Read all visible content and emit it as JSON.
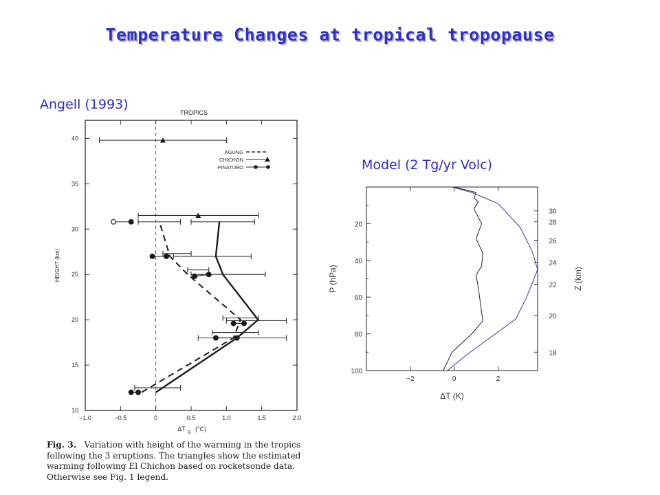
{
  "title": "Temperature Changes at tropical tropopause",
  "left_label": "Angell (1993)",
  "right_label": "Model (2 Tg/yr Volc)",
  "caption": {
    "figure": "Fig. 3.",
    "lines": [
      "Variation with height of the warming in the tropics",
      "following the 3 eruptions.  The triangles show the estimated",
      "warming following El Chichon based on rocketsonde data.",
      "Otherwise see Fig. 1 legend."
    ]
  },
  "chart_data": [
    {
      "type": "line",
      "title": "TROPICS",
      "xlabel": "ΔT",
      "xlabel_sub": "g",
      "xlabel_unit": "(°C)",
      "ylabel": "HEIGHT (km)",
      "xlim": [
        -1.0,
        2.0
      ],
      "ylim": [
        10,
        42
      ],
      "x_ticks": [
        -1.0,
        -0.5,
        0,
        0.5,
        1.0,
        1.5,
        2.0
      ],
      "x_tick_labels": [
        "−1.0",
        "−0.5",
        "0",
        "0.5",
        "1.0",
        "1.5",
        "2.0"
      ],
      "y_ticks": [
        10,
        15,
        20,
        25,
        30,
        35,
        40
      ],
      "legend_position": "top-right",
      "legend": [
        "AGUNG",
        "CHICHON",
        "PINATUBO"
      ],
      "series": [
        {
          "name": "AGUNG",
          "style": "dashed",
          "points": [
            [
              -0.2,
              12
            ],
            [
              1.1,
              18
            ],
            [
              1.2,
              20
            ],
            [
              0.45,
              25
            ],
            [
              0.2,
              27
            ],
            [
              0.05,
              30.8
            ]
          ]
        },
        {
          "name": "PINATUBO",
          "style": "solid",
          "points": [
            [
              0.0,
              12
            ],
            [
              1.15,
              18
            ],
            [
              1.45,
              20
            ],
            [
              0.95,
              25
            ],
            [
              0.85,
              27
            ],
            [
              0.9,
              30.8
            ]
          ]
        }
      ],
      "errorbars": [
        {
          "y": 31.5,
          "xmin": -0.25,
          "xmax": 1.45,
          "marker": "triangle",
          "x": 0.6
        },
        {
          "y": 30.8,
          "xmin": -0.25,
          "xmax": 0.35
        },
        {
          "y": 30.8,
          "xmin": 0.5,
          "xmax": 1.4
        },
        {
          "y": 27.3,
          "xmin": 0.1,
          "xmax": 0.5
        },
        {
          "y": 27.0,
          "xmin": 0.25,
          "xmax": 1.35
        },
        {
          "y": 25.5,
          "xmin": 0.45,
          "xmax": 0.75
        },
        {
          "y": 25.0,
          "xmin": 0.5,
          "xmax": 1.55
        },
        {
          "y": 20.2,
          "xmin": 0.95,
          "xmax": 1.45
        },
        {
          "y": 19.9,
          "xmin": 1.0,
          "xmax": 1.85
        },
        {
          "y": 18.6,
          "xmin": 0.8,
          "xmax": 1.45
        },
        {
          "y": 18.0,
          "xmin": 0.6,
          "xmax": 1.85
        },
        {
          "y": 12.5,
          "xmin": -0.3,
          "xmax": 0.35
        },
        {
          "y": 39.8,
          "xmin": -0.8,
          "xmax": 1.0,
          "marker": "triangle",
          "x": 0.1
        }
      ],
      "pinatubo_dots": [
        {
          "x": -0.6,
          "y": 30.8,
          "open": true
        },
        {
          "x": -0.35,
          "y": 30.8
        },
        {
          "x": -0.05,
          "y": 27.0
        },
        {
          "x": 0.15,
          "y": 27.0
        },
        {
          "x": 0.75,
          "y": 25.0
        },
        {
          "x": 0.55,
          "y": 24.8
        },
        {
          "x": 1.1,
          "y": 19.6
        },
        {
          "x": 1.25,
          "y": 19.6
        },
        {
          "x": 1.15,
          "y": 18.0
        },
        {
          "x": 0.85,
          "y": 18.0
        },
        {
          "x": -0.35,
          "y": 12.0
        },
        {
          "x": -0.25,
          "y": 12.0
        }
      ],
      "triangles": [
        {
          "x": 0.1,
          "y": 39.8
        },
        {
          "x": 0.6,
          "y": 31.5
        }
      ]
    },
    {
      "type": "line",
      "xlabel": "ΔT (K)",
      "ylabel": "P (hPa)",
      "ylabel_right": "Z (km)",
      "xlim": [
        -4,
        3.8
      ],
      "ylim": [
        100,
        0
      ],
      "x_ticks": [
        -2,
        0,
        2
      ],
      "y_ticks": [
        20,
        40,
        60,
        80,
        100
      ],
      "right_ticks": [
        {
          "p": 13,
          "label": "30"
        },
        {
          "p": 19,
          "label": "28"
        },
        {
          "p": 29,
          "label": "26"
        },
        {
          "p": 41,
          "label": "24"
        },
        {
          "p": 53,
          "label": "22"
        },
        {
          "p": 70,
          "label": "20"
        },
        {
          "p": 90,
          "label": "18"
        }
      ],
      "series": [
        {
          "name": "",
          "color": "#3a3a9a",
          "points": [
            [
              -0.1,
              0
            ],
            [
              0.8,
              3
            ],
            [
              2.0,
              9
            ],
            [
              3.0,
              22
            ],
            [
              3.55,
              35
            ],
            [
              3.8,
              45
            ],
            [
              3.3,
              60
            ],
            [
              2.8,
              72
            ],
            [
              0.5,
              92
            ],
            [
              -0.3,
              100
            ]
          ]
        },
        {
          "name": "",
          "color": "#222222",
          "points": [
            [
              0,
              0
            ],
            [
              1.0,
              3
            ],
            [
              0.9,
              6
            ],
            [
              1.1,
              8
            ],
            [
              0.9,
              12
            ],
            [
              1.25,
              20
            ],
            [
              1.0,
              28
            ],
            [
              1.3,
              36
            ],
            [
              1.25,
              43
            ],
            [
              1.0,
              48
            ],
            [
              1.1,
              55
            ],
            [
              1.3,
              73
            ],
            [
              0.8,
              80
            ],
            [
              -0.1,
              90
            ],
            [
              -0.5,
              100
            ]
          ]
        }
      ]
    }
  ]
}
